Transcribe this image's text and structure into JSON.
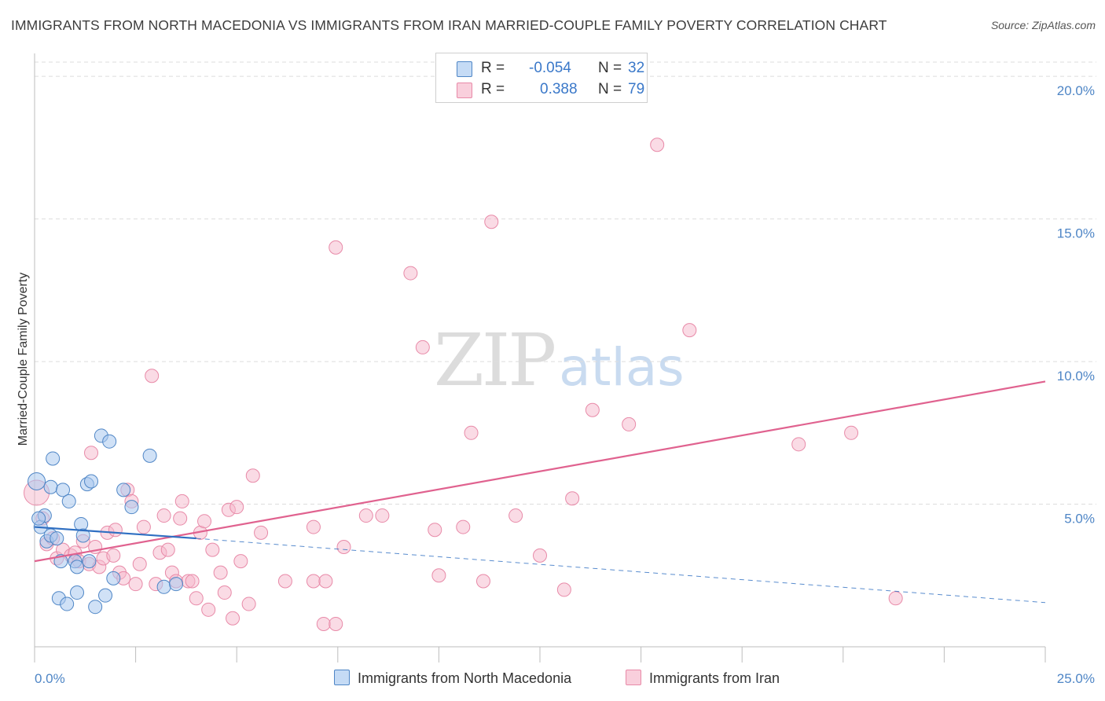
{
  "header": {
    "title": "IMMIGRANTS FROM NORTH MACEDONIA VS IMMIGRANTS FROM IRAN MARRIED-COUPLE FAMILY POVERTY CORRELATION CHART",
    "source": "Source: ZipAtlas.com"
  },
  "watermark": {
    "zip": "ZIP",
    "atlas": "atlas"
  },
  "legend": {
    "series1": {
      "r_label": "R =",
      "r_value": "-0.054",
      "n_label": "N =",
      "n_value": "32",
      "color": "#a9c8ee"
    },
    "series2": {
      "r_label": "R =",
      "r_value": "0.388",
      "n_label": "N =",
      "n_value": "79",
      "color": "#f6b8cb"
    }
  },
  "bottom_legend": {
    "series1": "Immigrants from North Macedonia",
    "series2": "Immigrants from Iran"
  },
  "colors": {
    "blue_fill": "#a9c8ee",
    "blue_stroke": "#4f86c6",
    "blue_line": "#2f6fc2",
    "pink_fill": "#f6b8cb",
    "pink_stroke": "#e88aa8",
    "pink_line": "#e0628f",
    "grid": "#dddddd",
    "tick_text": "#4f86c6"
  },
  "chart_data": {
    "type": "scatter",
    "title": "IMMIGRANTS FROM NORTH MACEDONIA VS IMMIGRANTS FROM IRAN MARRIED-COUPLE FAMILY POVERTY CORRELATION CHART",
    "xlabel": "",
    "ylabel": "Married-Couple Family Poverty",
    "xlim": [
      0,
      25
    ],
    "ylim": [
      0,
      20.5
    ],
    "x_tick_labels": [
      "0.0%",
      "25.0%"
    ],
    "y_ticks": [
      5,
      10,
      15,
      20
    ],
    "y_tick_labels": [
      "5.0%",
      "10.0%",
      "15.0%",
      "20.0%"
    ],
    "grid": true,
    "series": [
      {
        "name": "Immigrants from North Macedonia",
        "r": -0.054,
        "n": 32,
        "points": [
          [
            0.05,
            5.8
          ],
          [
            0.15,
            4.2
          ],
          [
            0.25,
            4.6
          ],
          [
            0.3,
            3.7
          ],
          [
            0.4,
            3.9
          ],
          [
            0.4,
            5.6
          ],
          [
            0.45,
            6.6
          ],
          [
            0.55,
            3.8
          ],
          [
            0.6,
            1.7
          ],
          [
            0.65,
            3.0
          ],
          [
            0.7,
            5.5
          ],
          [
            0.8,
            1.5
          ],
          [
            0.85,
            5.1
          ],
          [
            1.0,
            3.0
          ],
          [
            1.05,
            1.9
          ],
          [
            1.05,
            2.8
          ],
          [
            1.15,
            4.3
          ],
          [
            1.2,
            3.9
          ],
          [
            1.3,
            5.7
          ],
          [
            1.35,
            3.0
          ],
          [
            1.4,
            5.8
          ],
          [
            1.5,
            1.4
          ],
          [
            1.65,
            7.4
          ],
          [
            1.75,
            1.8
          ],
          [
            1.85,
            7.2
          ],
          [
            1.95,
            2.4
          ],
          [
            2.2,
            5.5
          ],
          [
            2.4,
            4.9
          ],
          [
            2.85,
            6.7
          ],
          [
            3.2,
            2.1
          ],
          [
            3.5,
            2.2
          ],
          [
            0.1,
            4.5
          ]
        ],
        "trend": {
          "x": [
            0,
            4
          ],
          "y": [
            4.2,
            3.8
          ]
        },
        "trend_extended": {
          "x": [
            4,
            25
          ],
          "y": [
            3.8,
            1.55
          ]
        }
      },
      {
        "name": "Immigrants from Iran",
        "r": 0.388,
        "n": 79,
        "points": [
          [
            0.05,
            5.4
          ],
          [
            0.2,
            4.5
          ],
          [
            0.3,
            3.6
          ],
          [
            0.45,
            3.8
          ],
          [
            0.55,
            3.1
          ],
          [
            0.7,
            3.4
          ],
          [
            0.9,
            3.2
          ],
          [
            1.0,
            3.3
          ],
          [
            1.1,
            3.0
          ],
          [
            1.2,
            3.7
          ],
          [
            1.35,
            2.9
          ],
          [
            1.4,
            6.8
          ],
          [
            1.5,
            3.5
          ],
          [
            1.6,
            2.8
          ],
          [
            1.7,
            3.1
          ],
          [
            1.8,
            4.0
          ],
          [
            1.95,
            3.2
          ],
          [
            2.0,
            4.1
          ],
          [
            2.1,
            2.6
          ],
          [
            2.2,
            2.4
          ],
          [
            2.3,
            5.5
          ],
          [
            2.4,
            5.1
          ],
          [
            2.5,
            2.2
          ],
          [
            2.6,
            2.9
          ],
          [
            2.7,
            4.2
          ],
          [
            2.9,
            9.5
          ],
          [
            3.0,
            2.2
          ],
          [
            3.1,
            3.3
          ],
          [
            3.2,
            4.6
          ],
          [
            3.3,
            3.4
          ],
          [
            3.4,
            2.6
          ],
          [
            3.5,
            2.3
          ],
          [
            3.6,
            4.5
          ],
          [
            3.65,
            5.1
          ],
          [
            3.8,
            2.3
          ],
          [
            3.9,
            2.3
          ],
          [
            4.0,
            1.7
          ],
          [
            4.1,
            4.0
          ],
          [
            4.2,
            4.4
          ],
          [
            4.3,
            1.3
          ],
          [
            4.4,
            3.4
          ],
          [
            4.6,
            2.6
          ],
          [
            4.7,
            1.9
          ],
          [
            4.8,
            4.8
          ],
          [
            4.9,
            1.0
          ],
          [
            5.0,
            4.9
          ],
          [
            5.1,
            3.0
          ],
          [
            5.3,
            1.5
          ],
          [
            5.4,
            6.0
          ],
          [
            5.6,
            4.0
          ],
          [
            6.2,
            2.3
          ],
          [
            6.9,
            4.2
          ],
          [
            6.9,
            2.3
          ],
          [
            7.15,
            0.8
          ],
          [
            7.2,
            2.3
          ],
          [
            7.45,
            14.0
          ],
          [
            7.45,
            0.8
          ],
          [
            7.65,
            3.5
          ],
          [
            8.2,
            4.6
          ],
          [
            8.6,
            4.6
          ],
          [
            9.3,
            13.1
          ],
          [
            9.6,
            10.5
          ],
          [
            9.9,
            4.1
          ],
          [
            10.0,
            2.5
          ],
          [
            10.6,
            4.2
          ],
          [
            10.8,
            7.5
          ],
          [
            11.1,
            2.3
          ],
          [
            11.3,
            14.9
          ],
          [
            11.9,
            4.6
          ],
          [
            12.5,
            3.2
          ],
          [
            13.1,
            2.0
          ],
          [
            13.3,
            5.2
          ],
          [
            13.8,
            8.3
          ],
          [
            14.7,
            7.8
          ],
          [
            15.4,
            17.6
          ],
          [
            16.2,
            11.1
          ],
          [
            18.9,
            7.1
          ],
          [
            20.2,
            7.5
          ],
          [
            21.3,
            1.7
          ]
        ],
        "trend": {
          "x": [
            0,
            25
          ],
          "y": [
            3.0,
            9.3
          ]
        }
      }
    ]
  }
}
